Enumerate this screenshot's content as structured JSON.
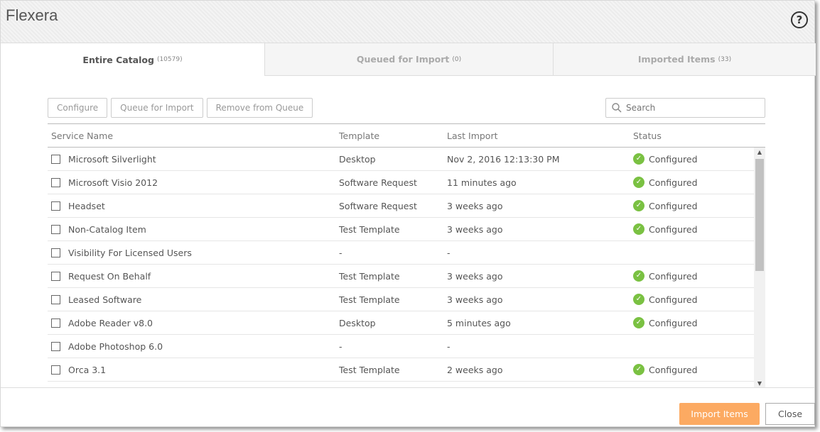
{
  "window": {
    "title": "Flexera",
    "help_icon": "question-circle-icon"
  },
  "tabs": [
    {
      "label": "Entire Catalog",
      "count": "(10579)",
      "active": true
    },
    {
      "label": "Queued for Import",
      "count": "(0)"
    },
    {
      "label": "Imported Items",
      "count": "(33)"
    }
  ],
  "toolbar": {
    "configure": "Configure",
    "queue": "Queue for Import",
    "remove": "Remove from Queue"
  },
  "search": {
    "placeholder": "Search",
    "value": ""
  },
  "table": {
    "headers": [
      "Service Name",
      "Template",
      "Last Import",
      "Status"
    ],
    "rows": [
      {
        "name": "Microsoft Silverlight",
        "template": "Desktop",
        "last": "Nov 2, 2016 12:13:30 PM",
        "status": "Configured"
      },
      {
        "name": "Microsoft Visio 2012",
        "template": "Software Request",
        "last": "11 minutes ago",
        "status": "Configured"
      },
      {
        "name": "Headset",
        "template": "Software Request",
        "last": "3 weeks ago",
        "status": "Configured"
      },
      {
        "name": "Non-Catalog Item",
        "template": "Test Template",
        "last": "3 weeks ago",
        "status": "Configured"
      },
      {
        "name": "Visibility For Licensed Users",
        "template": "-",
        "last": "-",
        "status": ""
      },
      {
        "name": "Request On Behalf",
        "template": "Test Template",
        "last": "3 weeks ago",
        "status": "Configured"
      },
      {
        "name": "Leased Software",
        "template": "Test Template",
        "last": "3 weeks ago",
        "status": "Configured"
      },
      {
        "name": "Adobe Reader v8.0",
        "template": "Desktop",
        "last": "5 minutes ago",
        "status": "Configured"
      },
      {
        "name": "Adobe Photoshop 6.0",
        "template": "-",
        "last": "-",
        "status": ""
      },
      {
        "name": "Orca 3.1",
        "template": "Test Template",
        "last": "2 weeks ago",
        "status": "Configured"
      }
    ]
  },
  "footer": {
    "import": "Import Items",
    "close": "Close"
  },
  "colors": {
    "accent": "#fcaa62",
    "ok": "#7ac142"
  }
}
